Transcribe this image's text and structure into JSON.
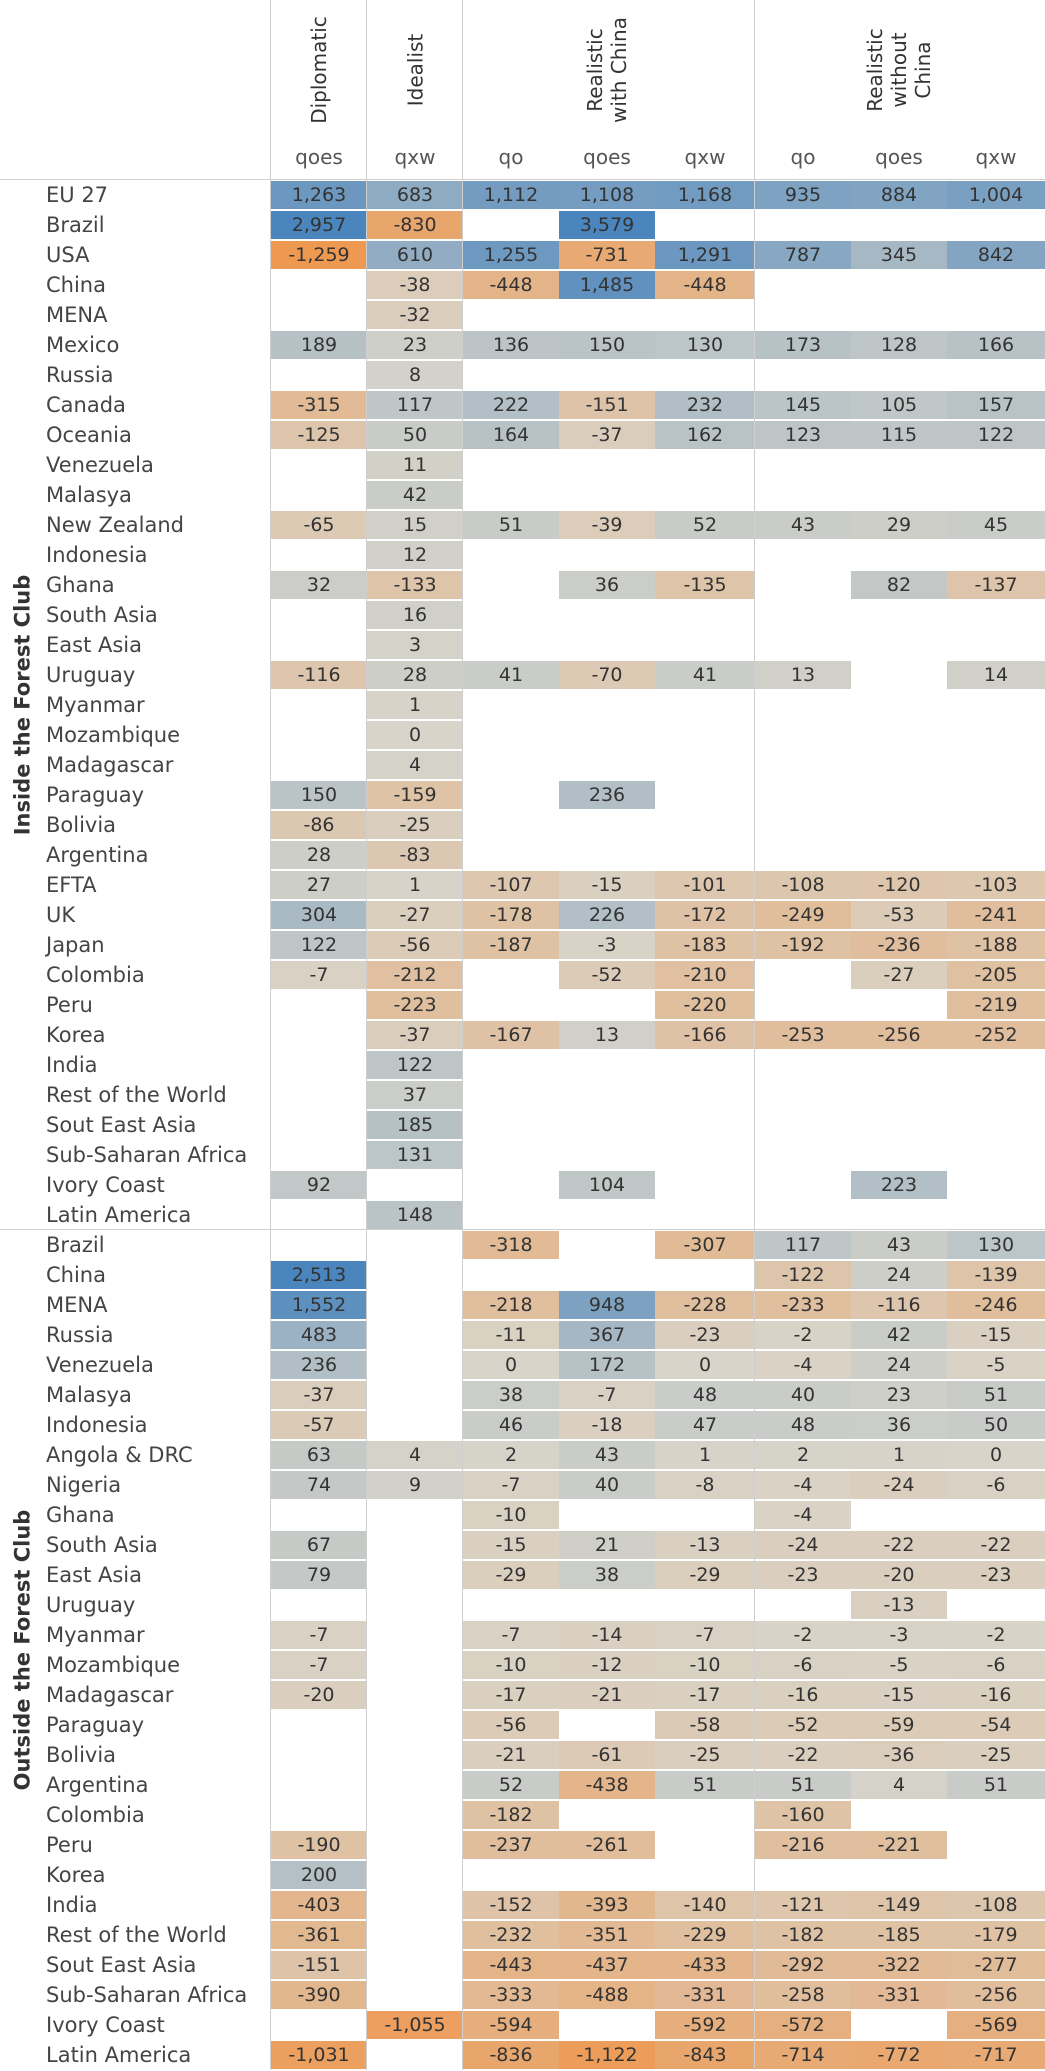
{
  "chart_data": {
    "type": "heatmap",
    "columns": [
      {
        "scenario": [
          "Diplomatic"
        ],
        "measure": "qoes"
      },
      {
        "scenario": [
          "Idealist"
        ],
        "measure": "qxw"
      },
      {
        "scenario": [
          "Realistic",
          "with China"
        ],
        "measure": "qo"
      },
      {
        "scenario": [
          "Realistic",
          "with China"
        ],
        "measure": "qoes"
      },
      {
        "scenario": [
          "Realistic",
          "with China"
        ],
        "measure": "qxw"
      },
      {
        "scenario": [
          "Realistic",
          "without",
          "China"
        ],
        "measure": "qo"
      },
      {
        "scenario": [
          "Realistic",
          "without",
          "China"
        ],
        "measure": "qoes"
      },
      {
        "scenario": [
          "Realistic",
          "without",
          "China"
        ],
        "measure": "qxw"
      }
    ],
    "scenarios": [
      {
        "lines": [
          "Diplomatic"
        ],
        "span": 1
      },
      {
        "lines": [
          "Idealist"
        ],
        "span": 1
      },
      {
        "lines": [
          "Realistic",
          "with China"
        ],
        "span": 3
      },
      {
        "lines": [
          "Realistic",
          "without",
          "China"
        ],
        "span": 3
      }
    ],
    "color_scale": {
      "negative": "#f5862c",
      "neutral": "#d8d4c9",
      "positive": "#4a85bd"
    },
    "groups": [
      {
        "name": "Inside the Forest Club",
        "rows": [
          {
            "label": "EU 27",
            "values": [
              1263,
              683,
              1112,
              1108,
              1168,
              935,
              884,
              1004
            ]
          },
          {
            "label": "Brazil",
            "values": [
              2957,
              -830,
              null,
              3579,
              null,
              null,
              null,
              null
            ]
          },
          {
            "label": "USA",
            "values": [
              -1259,
              610,
              1255,
              -731,
              1291,
              787,
              345,
              842
            ]
          },
          {
            "label": "China",
            "values": [
              null,
              -38,
              -448,
              1485,
              -448,
              null,
              null,
              null
            ]
          },
          {
            "label": "MENA",
            "values": [
              null,
              -32,
              null,
              null,
              null,
              null,
              null,
              null
            ]
          },
          {
            "label": "Mexico",
            "values": [
              189,
              23,
              136,
              150,
              130,
              173,
              128,
              166
            ]
          },
          {
            "label": "Russia",
            "values": [
              null,
              8,
              null,
              null,
              null,
              null,
              null,
              null
            ]
          },
          {
            "label": "Canada",
            "values": [
              -315,
              117,
              222,
              -151,
              232,
              145,
              105,
              157
            ]
          },
          {
            "label": "Oceania",
            "values": [
              -125,
              50,
              164,
              -37,
              162,
              123,
              115,
              122
            ]
          },
          {
            "label": "Venezuela",
            "values": [
              null,
              11,
              null,
              null,
              null,
              null,
              null,
              null
            ]
          },
          {
            "label": "Malasya",
            "values": [
              null,
              42,
              null,
              null,
              null,
              null,
              null,
              null
            ]
          },
          {
            "label": "New Zealand",
            "values": [
              -65,
              15,
              51,
              -39,
              52,
              43,
              29,
              45
            ]
          },
          {
            "label": "Indonesia",
            "values": [
              null,
              12,
              null,
              null,
              null,
              null,
              null,
              null
            ]
          },
          {
            "label": "Ghana",
            "values": [
              32,
              -133,
              null,
              36,
              -135,
              null,
              82,
              -137
            ]
          },
          {
            "label": "South Asia",
            "values": [
              null,
              16,
              null,
              null,
              null,
              null,
              null,
              null
            ]
          },
          {
            "label": "East Asia",
            "values": [
              null,
              3,
              null,
              null,
              null,
              null,
              null,
              null
            ]
          },
          {
            "label": "Uruguay",
            "values": [
              -116,
              28,
              41,
              -70,
              41,
              13,
              null,
              14
            ]
          },
          {
            "label": "Myanmar",
            "values": [
              null,
              1,
              null,
              null,
              null,
              null,
              null,
              null
            ]
          },
          {
            "label": "Mozambique",
            "values": [
              null,
              0,
              null,
              null,
              null,
              null,
              null,
              null
            ]
          },
          {
            "label": "Madagascar",
            "values": [
              null,
              4,
              null,
              null,
              null,
              null,
              null,
              null
            ]
          },
          {
            "label": "Paraguay",
            "values": [
              150,
              -159,
              null,
              236,
              null,
              null,
              null,
              null
            ]
          },
          {
            "label": "Bolivia",
            "values": [
              -86,
              -25,
              null,
              null,
              null,
              null,
              null,
              null
            ]
          },
          {
            "label": "Argentina",
            "values": [
              28,
              -83,
              null,
              null,
              null,
              null,
              null,
              null
            ]
          },
          {
            "label": "EFTA",
            "values": [
              27,
              1,
              -107,
              -15,
              -101,
              -108,
              -120,
              -103
            ]
          },
          {
            "label": "UK",
            "values": [
              304,
              -27,
              -178,
              226,
              -172,
              -249,
              -53,
              -241
            ]
          },
          {
            "label": "Japan",
            "values": [
              122,
              -56,
              -187,
              -3,
              -183,
              -192,
              -236,
              -188
            ]
          },
          {
            "label": "Colombia",
            "values": [
              -7,
              -212,
              null,
              -52,
              -210,
              null,
              -27,
              -205
            ]
          },
          {
            "label": "Peru",
            "values": [
              null,
              -223,
              null,
              null,
              -220,
              null,
              null,
              -219
            ]
          },
          {
            "label": "Korea",
            "values": [
              null,
              -37,
              -167,
              13,
              -166,
              -253,
              -256,
              -252
            ]
          },
          {
            "label": "India",
            "values": [
              null,
              122,
              null,
              null,
              null,
              null,
              null,
              null
            ]
          },
          {
            "label": "Rest of the World",
            "values": [
              null,
              37,
              null,
              null,
              null,
              null,
              null,
              null
            ]
          },
          {
            "label": "Sout East Asia",
            "values": [
              null,
              185,
              null,
              null,
              null,
              null,
              null,
              null
            ]
          },
          {
            "label": "Sub-Saharan Africa",
            "values": [
              null,
              131,
              null,
              null,
              null,
              null,
              null,
              null
            ]
          },
          {
            "label": "Ivory Coast",
            "values": [
              92,
              null,
              null,
              104,
              null,
              null,
              223,
              null
            ]
          },
          {
            "label": "Latin America",
            "values": [
              null,
              148,
              null,
              null,
              null,
              null,
              null,
              null
            ]
          }
        ]
      },
      {
        "name": "Outside the Forest Club",
        "rows": [
          {
            "label": "Brazil",
            "values": [
              null,
              null,
              -318,
              null,
              -307,
              117,
              43,
              130
            ]
          },
          {
            "label": "China",
            "values": [
              2513,
              null,
              null,
              null,
              null,
              -122,
              24,
              -139
            ]
          },
          {
            "label": "MENA",
            "values": [
              1552,
              null,
              -218,
              948,
              -228,
              -233,
              -116,
              -246
            ]
          },
          {
            "label": "Russia",
            "values": [
              483,
              null,
              -11,
              367,
              -23,
              -2,
              42,
              -15
            ]
          },
          {
            "label": "Venezuela",
            "values": [
              236,
              null,
              0,
              172,
              0,
              -4,
              24,
              -5
            ]
          },
          {
            "label": "Malasya",
            "values": [
              -37,
              null,
              38,
              -7,
              48,
              40,
              23,
              51
            ]
          },
          {
            "label": "Indonesia",
            "values": [
              -57,
              null,
              46,
              -18,
              47,
              48,
              36,
              50
            ]
          },
          {
            "label": "Angola & DRC",
            "values": [
              63,
              4,
              2,
              43,
              1,
              2,
              1,
              0
            ]
          },
          {
            "label": "Nigeria",
            "values": [
              74,
              9,
              -7,
              40,
              -8,
              -4,
              -24,
              -6
            ]
          },
          {
            "label": "Ghana",
            "values": [
              null,
              null,
              -10,
              null,
              null,
              -4,
              null,
              null
            ]
          },
          {
            "label": "South Asia",
            "values": [
              67,
              null,
              -15,
              21,
              -13,
              -24,
              -22,
              -22
            ]
          },
          {
            "label": "East Asia",
            "values": [
              79,
              null,
              -29,
              38,
              -29,
              -23,
              -20,
              -23
            ]
          },
          {
            "label": "Uruguay",
            "values": [
              null,
              null,
              null,
              null,
              null,
              null,
              -13,
              null
            ]
          },
          {
            "label": "Myanmar",
            "values": [
              -7,
              null,
              -7,
              -14,
              -7,
              -2,
              -3,
              -2
            ]
          },
          {
            "label": "Mozambique",
            "values": [
              -7,
              null,
              -10,
              -12,
              -10,
              -6,
              -5,
              -6
            ]
          },
          {
            "label": "Madagascar",
            "values": [
              -20,
              null,
              -17,
              -21,
              -17,
              -16,
              -15,
              -16
            ]
          },
          {
            "label": "Paraguay",
            "values": [
              null,
              null,
              -56,
              null,
              -58,
              -52,
              -59,
              -54
            ]
          },
          {
            "label": "Bolivia",
            "values": [
              null,
              null,
              -21,
              -61,
              -25,
              -22,
              -36,
              -25
            ]
          },
          {
            "label": "Argentina",
            "values": [
              null,
              null,
              52,
              -438,
              51,
              51,
              4,
              51
            ]
          },
          {
            "label": "Colombia",
            "values": [
              null,
              null,
              -182,
              null,
              null,
              -160,
              null,
              null
            ]
          },
          {
            "label": "Peru",
            "values": [
              -190,
              null,
              -237,
              -261,
              null,
              -216,
              -221,
              null
            ]
          },
          {
            "label": "Korea",
            "values": [
              200,
              null,
              null,
              null,
              null,
              null,
              null,
              null
            ]
          },
          {
            "label": "India",
            "values": [
              -403,
              null,
              -152,
              -393,
              -140,
              -121,
              -149,
              -108
            ]
          },
          {
            "label": "Rest of the World",
            "values": [
              -361,
              null,
              -232,
              -351,
              -229,
              -182,
              -185,
              -179
            ]
          },
          {
            "label": "Sout East Asia",
            "values": [
              -151,
              null,
              -443,
              -437,
              -433,
              -292,
              -322,
              -277
            ]
          },
          {
            "label": "Sub-Saharan Africa",
            "values": [
              -390,
              null,
              -333,
              -488,
              -331,
              -258,
              -331,
              -256
            ]
          },
          {
            "label": "Ivory Coast",
            "values": [
              null,
              -1055,
              -594,
              null,
              -592,
              -572,
              null,
              -569
            ]
          },
          {
            "label": "Latin America",
            "values": [
              -1031,
              null,
              -836,
              -1122,
              -843,
              -714,
              -772,
              -717
            ]
          }
        ]
      }
    ]
  }
}
